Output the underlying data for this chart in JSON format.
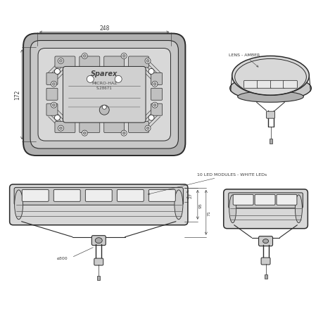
{
  "bg_color": "#ffffff",
  "lc": "#2a2a2a",
  "dc": "#3a3a3a",
  "fill_outer": "#d8d8d8",
  "fill_mid": "#c0c0c0",
  "fill_inner": "#b8b8b8",
  "fill_led": "#e8e8e8",
  "fill_light": "#eeeeee",
  "dim_248": "248",
  "dim_172": "172",
  "dim_27": "27",
  "dim_95": "95",
  "dim_71": "71",
  "label_lens": "LENS - AMBER",
  "label_leds": "10 LED MODULES - WHITE LEDs",
  "label_sparex": "Sparex",
  "label_model": "MICRO-HAZ",
  "label_partno": "S.28671"
}
